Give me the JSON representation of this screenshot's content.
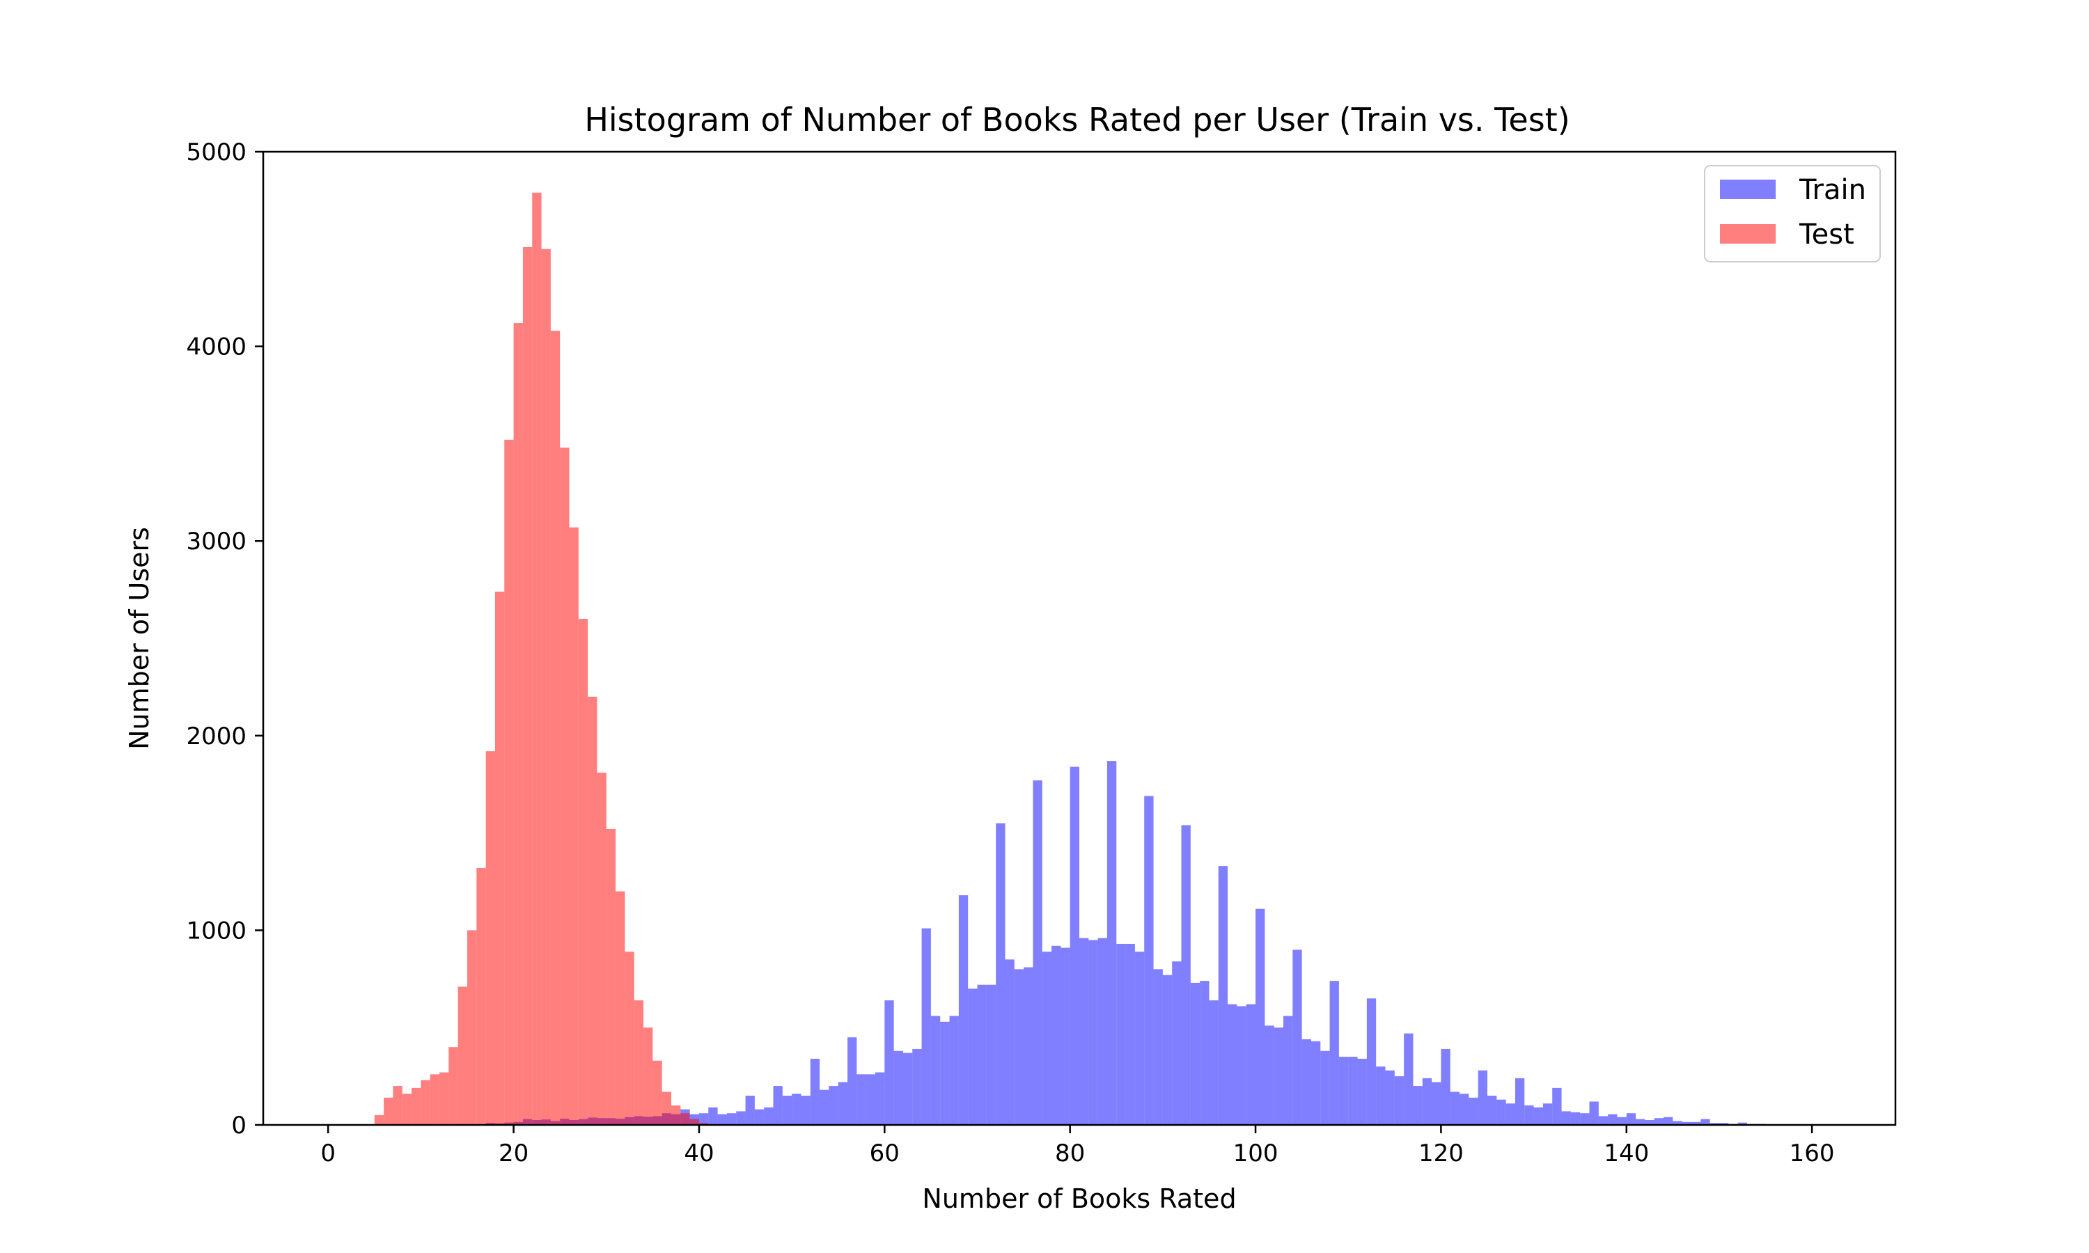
{
  "chart_data": {
    "type": "bar",
    "subtype": "overlaid-histogram",
    "title": "Histogram of Number of Books Rated per User (Train vs. Test)",
    "xlabel": "Number of Books Rated",
    "ylabel": "Number of Users",
    "xlim": [
      -7,
      169
    ],
    "ylim": [
      0,
      5000
    ],
    "xticks": [
      0,
      20,
      40,
      60,
      80,
      100,
      120,
      140,
      160
    ],
    "xtick_labels": [
      "0",
      "20",
      "40",
      "60",
      "80",
      "100",
      "120",
      "140",
      "160"
    ],
    "yticks": [
      0,
      1000,
      2000,
      3000,
      4000,
      5000
    ],
    "ytick_labels": [
      "0",
      "1000",
      "2000",
      "3000",
      "4000",
      "5000"
    ],
    "grid": false,
    "legend_position": "top-right",
    "bin_width": 1,
    "series": [
      {
        "name": "Train",
        "color": "#0000ff",
        "alpha": 0.5,
        "bins_start": 17,
        "values": [
          10,
          8,
          12,
          15,
          30,
          25,
          28,
          20,
          32,
          25,
          30,
          38,
          35,
          35,
          32,
          40,
          45,
          42,
          45,
          60,
          55,
          80,
          55,
          60,
          90,
          55,
          60,
          70,
          150,
          80,
          90,
          200,
          150,
          160,
          150,
          340,
          180,
          200,
          220,
          450,
          260,
          260,
          270,
          640,
          380,
          370,
          390,
          1010,
          560,
          530,
          560,
          1180,
          700,
          720,
          720,
          1550,
          850,
          800,
          810,
          1770,
          890,
          920,
          910,
          1840,
          960,
          950,
          960,
          1870,
          930,
          930,
          890,
          1690,
          800,
          770,
          840,
          1540,
          730,
          740,
          640,
          1330,
          620,
          610,
          620,
          1110,
          510,
          500,
          560,
          900,
          440,
          430,
          380,
          740,
          350,
          350,
          340,
          650,
          300,
          280,
          250,
          470,
          200,
          240,
          220,
          390,
          170,
          160,
          140,
          280,
          150,
          130,
          110,
          240,
          100,
          90,
          110,
          190,
          70,
          65,
          60,
          120,
          45,
          55,
          40,
          60,
          30,
          25,
          35,
          40,
          20,
          15,
          15,
          30,
          10,
          10,
          5,
          12,
          5,
          5
        ]
      },
      {
        "name": "Test",
        "color": "#ff0000",
        "alpha": 0.5,
        "bins_start": 5,
        "values": [
          50,
          140,
          200,
          160,
          190,
          230,
          260,
          270,
          400,
          710,
          1000,
          1320,
          1920,
          2740,
          3520,
          4120,
          4510,
          4790,
          4500,
          4080,
          3480,
          3070,
          2600,
          2200,
          1810,
          1520,
          1200,
          890,
          640,
          500,
          330,
          170,
          100,
          60,
          30,
          10
        ]
      }
    ]
  }
}
